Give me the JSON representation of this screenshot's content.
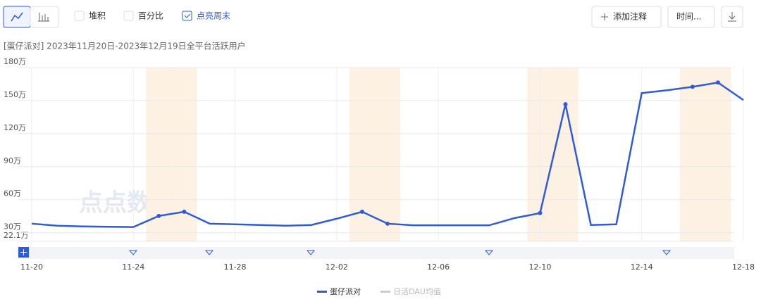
{
  "toolbar": {
    "stack": "堆积",
    "percent": "百分比",
    "weekend": "点亮周末",
    "annotate": "添加注释",
    "time": "时间..."
  },
  "chart_data": {
    "type": "line",
    "title": "[蛋仔派对] 2023年11月20日-2023年12月19日全平台活跃用户",
    "watermark": "点点数据",
    "categories": [
      "11-20",
      null,
      null,
      null,
      "11-24",
      null,
      null,
      null,
      "11-28",
      null,
      null,
      null,
      "12-02",
      null,
      null,
      null,
      "12-06",
      null,
      null,
      null,
      "12-10",
      null,
      null,
      null,
      "12-14",
      null,
      null,
      null,
      "12-18"
    ],
    "highlight_weekends": true,
    "weekend": [
      false,
      false,
      false,
      false,
      false,
      true,
      true,
      false,
      false,
      false,
      false,
      false,
      false,
      true,
      true,
      false,
      false,
      false,
      false,
      false,
      true,
      true,
      false,
      false,
      false,
      false,
      true,
      true,
      false
    ],
    "series": [
      {
        "name": "蛋仔派对",
        "color": "#2f5bdb",
        "values": [
          38.2,
          36.3,
          35.7,
          35.4,
          35.1,
          45.2,
          49.0,
          38.2,
          37.6,
          37.0,
          36.3,
          37.0,
          42.7,
          49.0,
          38.2,
          36.7,
          36.7,
          36.7,
          36.7,
          43.3,
          47.8,
          146.7,
          37.0,
          37.6,
          156.8,
          159.4,
          162.5,
          166.4,
          150.5
        ]
      },
      {
        "name": "日活DAU均值",
        "color": "#cccccc",
        "hidden": true
      }
    ],
    "ylim": [
      22.1,
      180
    ],
    "yticks": [
      {
        "value": 22.1,
        "label": "22.1万"
      },
      {
        "value": 30,
        "label": "30万"
      },
      {
        "value": 60,
        "label": "60万"
      },
      {
        "value": 90,
        "label": "90万"
      },
      {
        "value": 120,
        "label": "120万"
      },
      {
        "value": 150,
        "label": "150万"
      },
      {
        "value": 180,
        "label": "180万"
      }
    ],
    "grid": true
  }
}
